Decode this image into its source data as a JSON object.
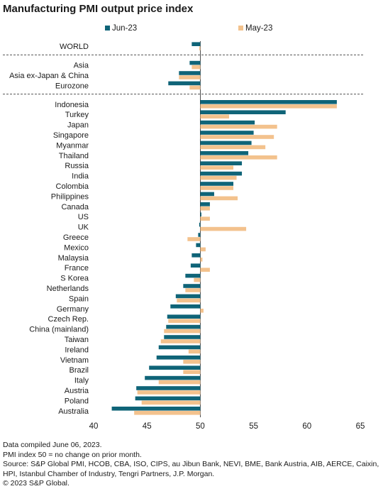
{
  "chart_data": {
    "type": "bar",
    "orientation": "horizontal",
    "title": "Manufacturing PMI output price index",
    "xlim": [
      40,
      65
    ],
    "xticks": [
      40,
      45,
      50,
      55,
      60,
      65
    ],
    "baseline": 50,
    "legend_placement": "top",
    "colors": {
      "Jun-23": "#0f6478",
      "May-23": "#f3c28d"
    },
    "groups": [
      {
        "rows": [
          {
            "label": "WORLD",
            "jun": 49.2,
            "may": 49.9
          }
        ]
      },
      {
        "rows": [
          {
            "label": "Asia",
            "jun": 49.0,
            "may": 49.2
          },
          {
            "label": "Asia ex-Japan & China",
            "jun": 48.0,
            "may": 48.0
          },
          {
            "label": "Eurozone",
            "jun": 47.0,
            "may": 49.0
          }
        ]
      },
      {
        "rows": [
          {
            "label": "Indonesia",
            "jun": 62.8,
            "may": 62.8
          },
          {
            "label": "Turkey",
            "jun": 58.0,
            "may": 52.7
          },
          {
            "label": "Japan",
            "jun": 55.1,
            "may": 57.2
          },
          {
            "label": "Singapore",
            "jun": 55.0,
            "may": 56.9
          },
          {
            "label": "Myanmar",
            "jun": 54.8,
            "may": 56.1
          },
          {
            "label": "Thailand",
            "jun": 54.5,
            "may": 57.2
          },
          {
            "label": "Russia",
            "jun": 53.9,
            "may": 53.1
          },
          {
            "label": "India",
            "jun": 53.9,
            "may": 53.4
          },
          {
            "label": "Colombia",
            "jun": 53.1,
            "may": 53.1
          },
          {
            "label": "Philippines",
            "jun": 51.3,
            "may": 53.5
          },
          {
            "label": "Canada",
            "jun": 50.9,
            "may": 50.9
          },
          {
            "label": "US",
            "jun": 50.1,
            "may": 50.9
          },
          {
            "label": "UK",
            "jun": 49.9,
            "may": 54.3
          },
          {
            "label": "Greece",
            "jun": 49.8,
            "may": 48.8
          },
          {
            "label": "Mexico",
            "jun": 49.6,
            "may": 50.5
          },
          {
            "label": "Malaysia",
            "jun": 49.2,
            "may": 50.2
          },
          {
            "label": "France",
            "jun": 49.1,
            "may": 50.9
          },
          {
            "label": "S Korea",
            "jun": 48.6,
            "may": 49.4
          },
          {
            "label": "Netherlands",
            "jun": 48.4,
            "may": 48.6
          },
          {
            "label": "Spain",
            "jun": 47.7,
            "may": 47.8
          },
          {
            "label": "Germany",
            "jun": 47.2,
            "may": 50.3
          },
          {
            "label": "Czech Rep.",
            "jun": 46.9,
            "may": 47.0
          },
          {
            "label": "China (mainland)",
            "jun": 46.8,
            "may": 46.6
          },
          {
            "label": "Taiwan",
            "jun": 46.6,
            "may": 46.3
          },
          {
            "label": "Ireland",
            "jun": 46.1,
            "may": 48.9
          },
          {
            "label": "Vietnam",
            "jun": 45.9,
            "may": 48.4
          },
          {
            "label": "Brazil",
            "jun": 45.2,
            "may": 48.4
          },
          {
            "label": "Italy",
            "jun": 44.8,
            "may": 46.1
          },
          {
            "label": "Austria",
            "jun": 44.0,
            "may": 44.1
          },
          {
            "label": "Poland",
            "jun": 43.9,
            "may": 44.5
          },
          {
            "label": "Australia",
            "jun": 41.7,
            "may": 43.8
          }
        ]
      }
    ]
  },
  "legend": {
    "jun_label": "Jun-23",
    "may_label": "May-23"
  },
  "footer": {
    "line1": "Data compiled June 06, 2023.",
    "line2": "PMI index 50 = no change on prior month.",
    "line3": "Source: S&P Global PMI, HCOB, CBA, ISO, CIPS, au Jibun Bank, NEVI, BME, Bank Austria, AIB, AERCE, Caixin, HPI, Istanbul Chamber of Industry, Tengri Partners, J.P. Morgan.",
    "line4": "© 2023 S&P Global."
  }
}
